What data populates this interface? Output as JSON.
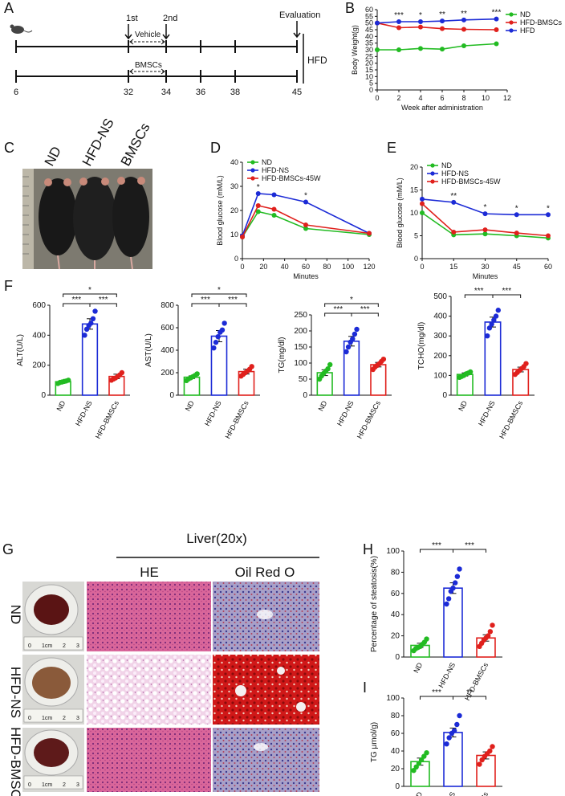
{
  "colors": {
    "green": "#22bb22",
    "blue": "#1c2bd6",
    "red": "#e0201c",
    "black": "#111111"
  },
  "panel_letters": [
    "A",
    "B",
    "C",
    "D",
    "E",
    "F",
    "G",
    "H",
    "I"
  ],
  "timeline": {
    "first_label": "1st",
    "second_label": "2nd",
    "evaluation_label": "Evaluation",
    "vehicle_label": "Vehicle",
    "bmsc_label": "BMSCs",
    "hfd_label": "HFD",
    "ticks": [
      "6",
      "32",
      "34",
      "36",
      "38",
      "45"
    ]
  },
  "mouse_photo": {
    "labels": [
      "ND",
      "HFD-NS",
      "BMSCs"
    ]
  },
  "liver": {
    "title": "Liver(20x)",
    "col_labels": [
      "HE",
      "Oil Red O"
    ],
    "row_labels": [
      "ND",
      "HFD-NS",
      "HFD-BMSC"
    ],
    "ruler_text": [
      "0",
      "1cm",
      "2",
      "3"
    ]
  },
  "chart_data": [
    {
      "id": "B",
      "type": "line",
      "ylabel": "Body Weight(g)",
      "xlabel": "Week after administration",
      "xlim": [
        0,
        12
      ],
      "ylim": [
        0,
        60
      ],
      "xticks": [
        0,
        2,
        4,
        6,
        8,
        10,
        12
      ],
      "yticks": [
        0,
        5,
        10,
        15,
        20,
        25,
        30,
        35,
        40,
        45,
        50,
        55,
        60
      ],
      "x": [
        0,
        2,
        4,
        6,
        8,
        11
      ],
      "series": [
        {
          "name": "ND",
          "color": "green",
          "values": [
            30,
            30,
            31,
            30.5,
            33,
            34.5
          ]
        },
        {
          "name": "HFD-BMSCs",
          "color": "red",
          "values": [
            50,
            46.5,
            47,
            45.8,
            45.3,
            45
          ]
        },
        {
          "name": "HFD",
          "color": "blue",
          "values": [
            50,
            51,
            51,
            51.5,
            52.3,
            53
          ]
        }
      ],
      "stars": [
        {
          "x": 2,
          "t": "***"
        },
        {
          "x": 4,
          "t": "*"
        },
        {
          "x": 6,
          "t": "**"
        },
        {
          "x": 8,
          "t": "**"
        },
        {
          "x": 11,
          "t": "***"
        }
      ]
    },
    {
      "id": "D",
      "type": "line",
      "ylabel": "Blood glucose (mM/L)",
      "xlabel": "Minutes",
      "xlim": [
        0,
        120
      ],
      "ylim": [
        0,
        40
      ],
      "xticks": [
        0,
        20,
        40,
        60,
        80,
        100,
        120
      ],
      "yticks": [
        0,
        10,
        20,
        30,
        40
      ],
      "x": [
        0,
        15,
        30,
        60,
        120
      ],
      "series": [
        {
          "name": "ND",
          "color": "green",
          "values": [
            9,
            19.5,
            18,
            12.5,
            10
          ]
        },
        {
          "name": "HFD-NS",
          "color": "blue",
          "values": [
            9.5,
            27,
            26.5,
            23.5,
            10.5
          ]
        },
        {
          "name": "HFD-BMSCs-45W",
          "color": "red",
          "values": [
            9,
            22,
            20.5,
            14,
            10.5
          ]
        }
      ],
      "stars": [
        {
          "x": 15,
          "t": "*"
        },
        {
          "x": 60,
          "t": "*"
        }
      ]
    },
    {
      "id": "E",
      "type": "line",
      "ylabel": "Blood glucose (mM/L)",
      "xlabel": "Minutes",
      "xlim": [
        0,
        60
      ],
      "ylim": [
        0,
        20
      ],
      "xticks": [
        0,
        15,
        30,
        45,
        60
      ],
      "yticks": [
        0,
        5,
        10,
        15,
        20
      ],
      "x": [
        0,
        15,
        30,
        45,
        60
      ],
      "series": [
        {
          "name": "ND",
          "color": "green",
          "values": [
            10,
            5.2,
            5.4,
            5,
            4.5
          ]
        },
        {
          "name": "HFD-NS",
          "color": "blue",
          "values": [
            13,
            12.3,
            9.8,
            9.6,
            9.6
          ]
        },
        {
          "name": "HFD-BMSCs-45W",
          "color": "red",
          "values": [
            12,
            5.8,
            6.3,
            5.6,
            5
          ]
        }
      ],
      "stars": [
        {
          "x": 15,
          "t": "**"
        },
        {
          "x": 30,
          "t": "*"
        },
        {
          "x": 45,
          "t": "*"
        },
        {
          "x": 60,
          "t": "*"
        }
      ]
    },
    {
      "id": "F1",
      "type": "bar",
      "ylabel": "ALT(U/L)",
      "categories": [
        "ND",
        "HFD-NS",
        "HFD-BMSCs"
      ],
      "values": [
        90,
        475,
        125
      ],
      "errors": [
        6,
        35,
        15
      ],
      "ylim": [
        0,
        600
      ],
      "yticks": [
        0,
        200,
        400,
        600
      ],
      "points": [
        [
          78,
          85,
          88,
          92,
          95,
          100
        ],
        [
          400,
          440,
          465,
          480,
          510,
          560
        ],
        [
          100,
          108,
          115,
          125,
          135,
          150
        ]
      ],
      "sig": [
        {
          "a": 0,
          "b": 1,
          "t": "***"
        },
        {
          "a": 1,
          "b": 2,
          "t": "***"
        },
        {
          "a": 0,
          "b": 2,
          "t": "*"
        }
      ]
    },
    {
      "id": "F2",
      "type": "bar",
      "ylabel": "AST(U/L)",
      "categories": [
        "ND",
        "HFD-NS",
        "HFD-BMSCs"
      ],
      "values": [
        160,
        525,
        210
      ],
      "errors": [
        12,
        50,
        22
      ],
      "ylim": [
        0,
        800
      ],
      "yticks": [
        0,
        200,
        400,
        600,
        800
      ],
      "points": [
        [
          130,
          145,
          155,
          165,
          175,
          190
        ],
        [
          420,
          470,
          520,
          560,
          580,
          640
        ],
        [
          170,
          185,
          200,
          215,
          230,
          255
        ]
      ],
      "sig": [
        {
          "a": 0,
          "b": 1,
          "t": "***"
        },
        {
          "a": 1,
          "b": 2,
          "t": "***"
        },
        {
          "a": 0,
          "b": 2,
          "t": "*"
        }
      ]
    },
    {
      "id": "F3",
      "type": "bar",
      "ylabel": "TG(mg/dl)",
      "categories": [
        "ND",
        "HFD-NS",
        "HFD-BMSCs"
      ],
      "values": [
        70,
        168,
        95
      ],
      "errors": [
        9,
        15,
        7
      ],
      "ylim": [
        0,
        250
      ],
      "yticks": [
        0,
        50,
        100,
        150,
        200,
        250
      ],
      "points": [
        [
          50,
          60,
          68,
          75,
          82,
          95
        ],
        [
          135,
          150,
          165,
          175,
          190,
          205
        ],
        [
          80,
          88,
          93,
          98,
          105,
          112
        ]
      ],
      "sig": [
        {
          "a": 0,
          "b": 1,
          "t": "***"
        },
        {
          "a": 1,
          "b": 2,
          "t": "***"
        },
        {
          "a": 0,
          "b": 2,
          "t": "*"
        }
      ]
    },
    {
      "id": "F4",
      "type": "bar",
      "ylabel": "TCHO(mg/dl)",
      "categories": [
        "ND",
        "HFD-NS",
        "HFD-BMSCs"
      ],
      "values": [
        105,
        370,
        130
      ],
      "errors": [
        8,
        25,
        12
      ],
      "ylim": [
        0,
        500
      ],
      "yticks": [
        0,
        100,
        200,
        300,
        400,
        500
      ],
      "points": [
        [
          90,
          95,
          100,
          108,
          112,
          118
        ],
        [
          300,
          340,
          360,
          380,
          400,
          430
        ],
        [
          105,
          115,
          125,
          135,
          145,
          160
        ]
      ],
      "sig": [
        {
          "a": 0,
          "b": 1,
          "t": "***"
        },
        {
          "a": 1,
          "b": 2,
          "t": "***"
        }
      ]
    },
    {
      "id": "H",
      "type": "bar",
      "ylabel": "Percentage of steatosis(%)",
      "categories": [
        "ND",
        "HFD-NS",
        "HFD-BMSCs"
      ],
      "values": [
        11,
        65,
        18
      ],
      "errors": [
        2,
        5,
        3
      ],
      "ylim": [
        0,
        100
      ],
      "yticks": [
        0,
        20,
        40,
        60,
        80,
        100
      ],
      "points": [
        [
          6,
          8,
          9,
          10,
          12,
          14,
          17
        ],
        [
          50,
          55,
          62,
          65,
          70,
          76,
          83
        ],
        [
          10,
          13,
          16,
          18,
          20,
          24,
          30
        ]
      ],
      "sig": [
        {
          "a": 0,
          "b": 1,
          "t": "***"
        },
        {
          "a": 1,
          "b": 2,
          "t": "***"
        }
      ]
    },
    {
      "id": "I",
      "type": "bar",
      "ylabel": "TG  μmol/g)",
      "categories": [
        "ND",
        "HFD-NS",
        "HFD-BMSCs"
      ],
      "values": [
        28,
        61,
        35
      ],
      "errors": [
        4,
        5,
        4
      ],
      "ylim": [
        0,
        100
      ],
      "yticks": [
        0,
        20,
        40,
        60,
        80,
        100
      ],
      "points": [
        [
          18,
          22,
          26,
          30,
          34,
          38
        ],
        [
          48,
          55,
          60,
          63,
          70,
          80
        ],
        [
          25,
          30,
          34,
          37,
          40,
          45
        ]
      ],
      "sig": [
        {
          "a": 0,
          "b": 1,
          "t": "***"
        },
        {
          "a": 1,
          "b": 2,
          "t": "**"
        }
      ]
    }
  ]
}
